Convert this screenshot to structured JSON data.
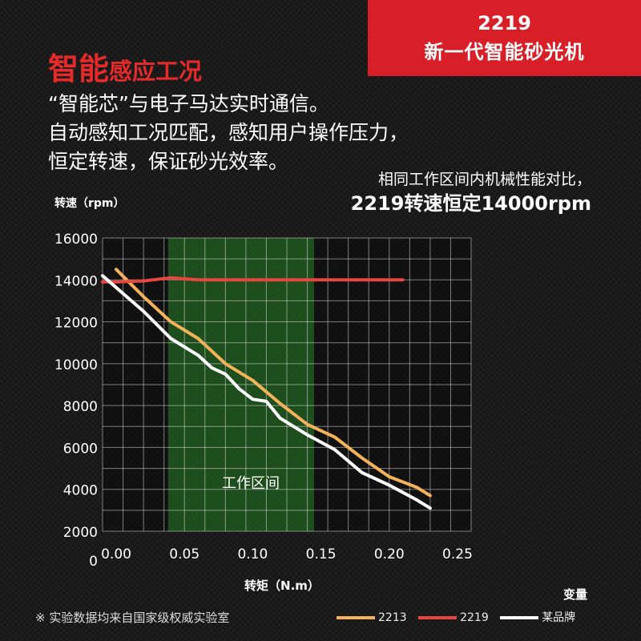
{
  "badge": {
    "model": "2219",
    "name": "新一代智能砂光机"
  },
  "headline": {
    "big": "智能",
    "small": "感应工况"
  },
  "intro": [
    "“智能芯”与电子马达实时通信。",
    "自动感知工况匹配，感知用户操作压力，",
    "恒定转速，保证砂光效率。"
  ],
  "compare": {
    "line1": "相同工作区间内机械性能对比，",
    "line2": "2219转速恒定14000rpm"
  },
  "footnote": "※ 实验数据均来自国家级权威实验室",
  "colors": {
    "badge": "#d81f27",
    "s2213": "#f4b25a",
    "s2219": "#e8463f",
    "brand": "#ffffff",
    "zone": "#2e9a2e"
  },
  "chart_data": {
    "type": "line",
    "xlabel": "转矩（N.m）",
    "ylabel": "转速（rpm）",
    "x_ticks": [
      "0.00",
      "0.05",
      "0.10",
      "0.15",
      "0.20",
      "0.25"
    ],
    "y_ticks": [
      "16000",
      "14000",
      "12000",
      "10000",
      "8000",
      "6000",
      "4000",
      "2000"
    ],
    "y_zero_label": "0",
    "xlim": [
      -0.01,
      0.26
    ],
    "ylim": [
      2000,
      16000
    ],
    "grid": true,
    "legend": {
      "title": "变量",
      "position": "bottom-right"
    },
    "working_zone": {
      "label": "工作区间",
      "x_range": [
        0.038,
        0.145
      ]
    },
    "series": [
      {
        "name": "2213",
        "color": "#f4b25a",
        "x": [
          0.0,
          0.02,
          0.04,
          0.06,
          0.08,
          0.1,
          0.12,
          0.14,
          0.16,
          0.18,
          0.2,
          0.22,
          0.23
        ],
        "y": [
          14500,
          13200,
          12000,
          11200,
          10000,
          9200,
          8100,
          7100,
          6500,
          5500,
          4600,
          4100,
          3700
        ]
      },
      {
        "name": "2219",
        "color": "#e8463f",
        "x": [
          -0.01,
          0.0,
          0.02,
          0.04,
          0.06,
          0.1,
          0.15,
          0.2,
          0.21
        ],
        "y": [
          13900,
          13900,
          13950,
          14100,
          14000,
          14000,
          14000,
          14000,
          14000
        ]
      },
      {
        "name": "某品牌",
        "color": "#ffffff",
        "x": [
          -0.01,
          0.02,
          0.04,
          0.06,
          0.07,
          0.08,
          0.09,
          0.1,
          0.11,
          0.12,
          0.13,
          0.14,
          0.16,
          0.18,
          0.2,
          0.22,
          0.23
        ],
        "y": [
          14200,
          12500,
          11200,
          10400,
          9800,
          9500,
          8800,
          8300,
          8200,
          7400,
          7000,
          6600,
          5900,
          4800,
          4200,
          3500,
          3100
        ]
      }
    ]
  }
}
